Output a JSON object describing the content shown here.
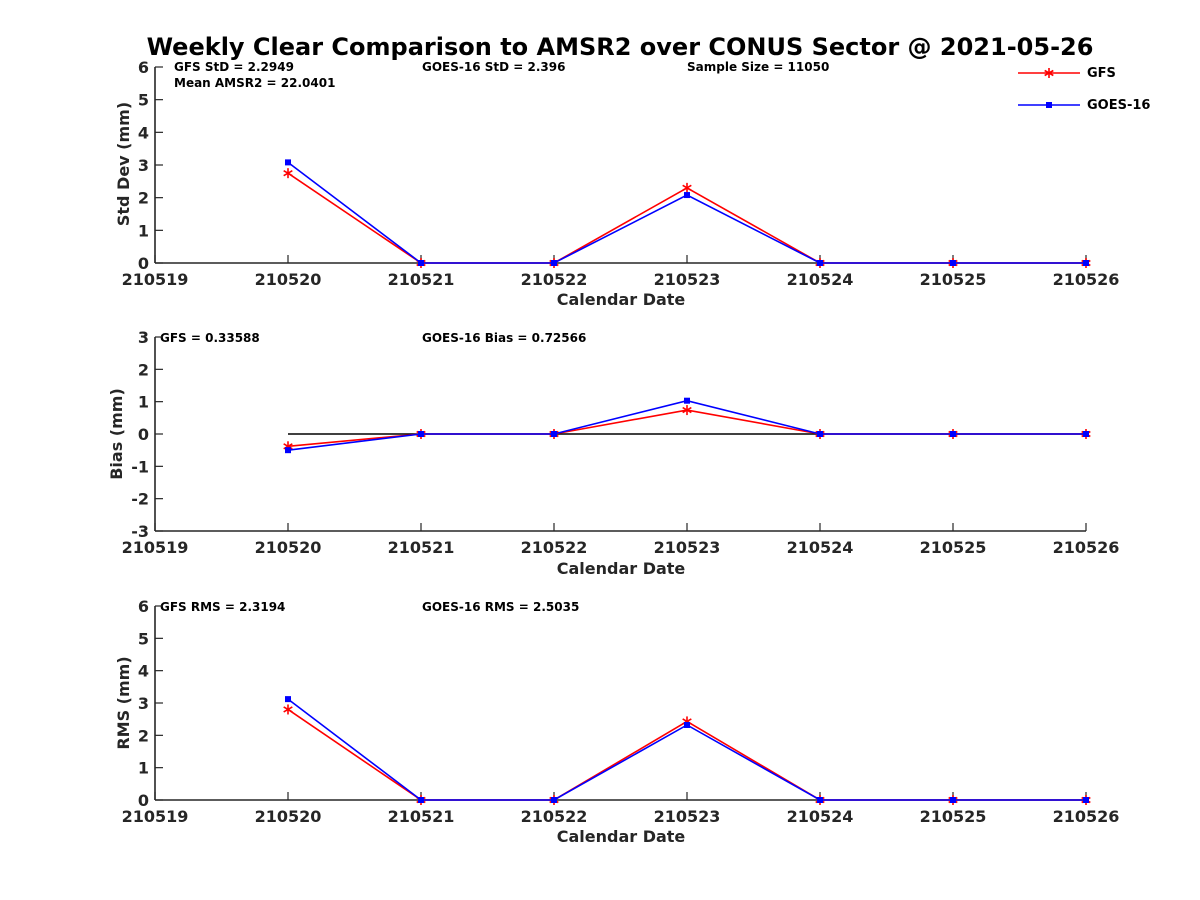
{
  "colors": {
    "gfs": "#ff0000",
    "goes": "#0000ff",
    "axis": "#262626",
    "zero_line": "#000000"
  },
  "chart_data": {
    "title": "Weekly Clear Comparison to AMSR2 over CONUS Sector @ 2021-05-26",
    "legend": {
      "placement": "top-right",
      "entries": [
        {
          "name": "GFS",
          "color": "#ff0000",
          "marker": "asterisk"
        },
        {
          "name": "GOES-16",
          "color": "#0000ff",
          "marker": "square"
        }
      ]
    },
    "panels": [
      {
        "id": "std",
        "type": "line",
        "xlabel": "Calendar Date",
        "ylabel": "Std Dev (mm)",
        "x_ticks": [
          "210519",
          "210520",
          "210521",
          "210522",
          "210523",
          "210524",
          "210525",
          "210526"
        ],
        "y_ticks": [
          "0",
          "1",
          "2",
          "3",
          "4",
          "5",
          "6"
        ],
        "ylim": [
          0,
          6
        ],
        "x": [
          "210520",
          "210521",
          "210522",
          "210523",
          "210524",
          "210525",
          "210526"
        ],
        "series": [
          {
            "name": "GFS",
            "values": [
              2.75,
              0,
              0,
              2.3,
              0,
              0,
              0
            ]
          },
          {
            "name": "GOES-16",
            "values": [
              3.08,
              0,
              0,
              2.08,
              0,
              0,
              0
            ]
          }
        ],
        "annotations": [
          "GFS StD = 2.2949",
          "Mean AMSR2 = 22.0401",
          "GOES-16 StD = 2.396",
          "Sample Size = 11050"
        ],
        "zero_line": false
      },
      {
        "id": "bias",
        "type": "line",
        "xlabel": "Calendar Date",
        "ylabel": "Bias (mm)",
        "x_ticks": [
          "210519",
          "210520",
          "210521",
          "210522",
          "210523",
          "210524",
          "210525",
          "210526"
        ],
        "y_ticks": [
          "-3",
          "-2",
          "-1",
          "0",
          "1",
          "2",
          "3"
        ],
        "ylim": [
          -3,
          3
        ],
        "x": [
          "210520",
          "210521",
          "210522",
          "210523",
          "210524",
          "210525",
          "210526"
        ],
        "series": [
          {
            "name": "GFS",
            "values": [
              -0.38,
              0,
              0,
              0.74,
              0,
              0,
              0
            ]
          },
          {
            "name": "GOES-16",
            "values": [
              -0.5,
              0,
              0,
              1.03,
              0,
              0,
              0
            ]
          }
        ],
        "annotations": [
          "GFS = 0.33588",
          "GOES-16 Bias  = 0.72566"
        ],
        "zero_line": true
      },
      {
        "id": "rms",
        "type": "line",
        "xlabel": "Calendar Date",
        "ylabel": "RMS (mm)",
        "x_ticks": [
          "210519",
          "210520",
          "210521",
          "210522",
          "210523",
          "210524",
          "210525",
          "210526"
        ],
        "y_ticks": [
          "0",
          "1",
          "2",
          "3",
          "4",
          "5",
          "6"
        ],
        "ylim": [
          0,
          6
        ],
        "x": [
          "210520",
          "210521",
          "210522",
          "210523",
          "210524",
          "210525",
          "210526"
        ],
        "series": [
          {
            "name": "GFS",
            "values": [
              2.8,
              0,
              0,
              2.43,
              0,
              0,
              0
            ]
          },
          {
            "name": "GOES-16",
            "values": [
              3.12,
              0,
              0,
              2.32,
              0,
              0,
              0
            ]
          }
        ],
        "annotations": [
          "GFS RMS = 2.3194",
          "GOES-16 RMS = 2.5035"
        ],
        "zero_line": false
      }
    ]
  }
}
